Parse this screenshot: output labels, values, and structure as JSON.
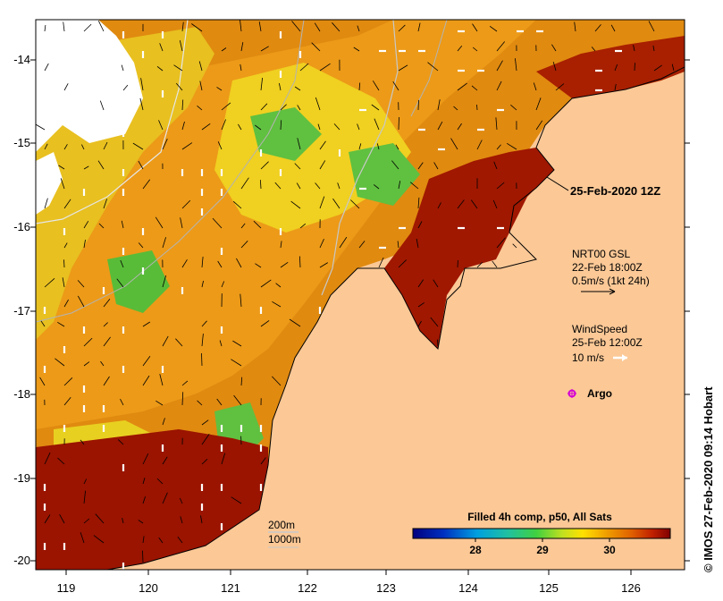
{
  "map": {
    "x_ticks": [
      "119",
      "120",
      "121",
      "122",
      "123",
      "124",
      "125",
      "126"
    ],
    "y_ticks": [
      "-14",
      "-15",
      "-16",
      "-17",
      "-18",
      "-19",
      "-20"
    ]
  },
  "annotations": {
    "date": "25-Feb-2020 12Z",
    "current_title": "NRT00 GSL",
    "current_time": "22-Feb 18:00Z",
    "current_scale": "0.5m/s (1kt 24h)",
    "wind_title": "WindSpeed",
    "wind_time": "25-Feb 12:00Z",
    "wind_scale": "10 m/s",
    "argo_label": "Argo",
    "depth_200": "200m",
    "depth_1000": "1000m"
  },
  "colorbar": {
    "title": "Filled 4h comp, p50, All Sats",
    "ticks": [
      "28",
      "29",
      "30"
    ]
  },
  "credit": "© IMOS 27-Feb-2020 09:14 Hobart",
  "colors": {
    "land": "#fbc896",
    "cloud": "#ffffff",
    "arrow_current": "#000000",
    "arrow_wind": "#ffffff",
    "argo": "#d400d4",
    "contour": "#c8c8c8"
  }
}
